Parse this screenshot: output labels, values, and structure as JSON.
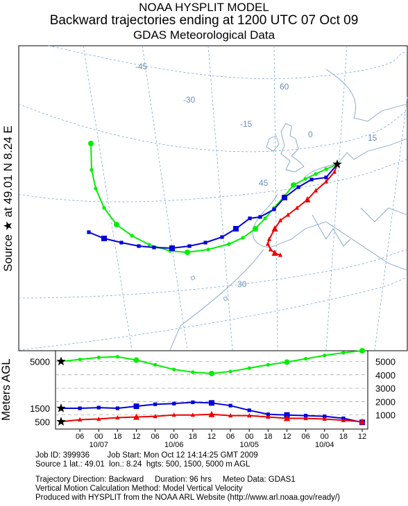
{
  "header": {
    "line1": "NOAA HYSPLIT MODEL",
    "line2": "Backward trajectories ending at 1200 UTC 07 Oct 09",
    "line3": "GDAS Meteorological Data"
  },
  "side_label": "Source ★ at   49.01 N     8.24 E",
  "agl_label": "Meters AGL",
  "map": {
    "grid_labels": [
      "-45",
      "-30",
      "-15",
      "0",
      "15",
      "60",
      "45",
      "30"
    ]
  },
  "footer": {
    "line1": "Job ID: 399936        Job Start: Mon Oct 12 14:14:25 GMT 2009",
    "line2": "Source 1 lat.: 49.01  lon.: 8.24  hgts: 500, 1500, 5000 m AGL",
    "line3": "Trajectory Direction: Backward     Duration: 96 hrs     Meteo Data: GDAS1",
    "line4": "Vertical Motion Calculation Method: Model Vertical Velocity",
    "line5": "Produced with HYSPLIT from the NOAA ARL Website (http://www.arl.noaa.gov/ready/)"
  },
  "chart_data": {
    "type": "line",
    "title": "Backward trajectories ending at 1200 UTC 07 Oct 09",
    "ylabel": "Meters AGL",
    "ylim": [
      0,
      5800
    ],
    "y_ticks_left": [
      "5000",
      "1500",
      "500"
    ],
    "y_ticks_right": [
      "5000",
      "4000",
      "3000",
      "2000",
      "1000"
    ],
    "x_hour_labels": [
      "06",
      "00",
      "18",
      "12",
      "06",
      "00",
      "18",
      "12",
      "06",
      "00",
      "18",
      "12",
      "06",
      "00",
      "18",
      "12"
    ],
    "x_date_labels": [
      "10/07",
      "10/06",
      "10/05",
      "10/04"
    ],
    "x_hours_back": [
      0,
      6,
      12,
      18,
      24,
      30,
      36,
      42,
      48,
      54,
      60,
      66,
      72,
      78,
      84,
      90,
      96
    ],
    "series": [
      {
        "color": "#00ee00",
        "marker": "circle",
        "start_height": 5000,
        "heights": [
          5000,
          5150,
          5300,
          5350,
          5100,
          4750,
          4400,
          4200,
          4100,
          4250,
          4500,
          4750,
          4950,
          5200,
          5450,
          5650,
          5800
        ]
      },
      {
        "color": "#0000dd",
        "marker": "square",
        "start_height": 1500,
        "heights": [
          1500,
          1500,
          1550,
          1500,
          1650,
          1800,
          1850,
          1950,
          1900,
          1700,
          1350,
          1050,
          1000,
          950,
          900,
          750,
          450
        ]
      },
      {
        "color": "#ee0000",
        "marker": "triangle",
        "start_height": 500,
        "heights": [
          500,
          650,
          700,
          800,
          850,
          900,
          1000,
          1000,
          1050,
          950,
          950,
          850,
          750,
          750,
          700,
          600,
          500
        ]
      }
    ]
  }
}
